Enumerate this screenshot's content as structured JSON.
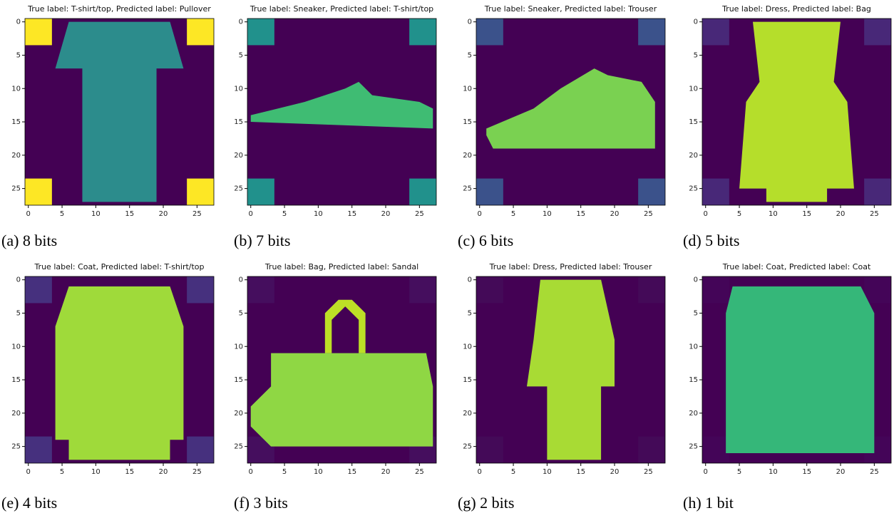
{
  "chart_data": {
    "type": "image-grid",
    "xlim": [
      -0.5,
      27.5
    ],
    "ylim": [
      27.5,
      -0.5
    ],
    "xticks": [
      0,
      5,
      10,
      15,
      20,
      25
    ],
    "yticks": [
      0,
      5,
      10,
      15,
      20,
      25
    ],
    "panels": [
      {
        "title": "True label: T-shirt/top, Predicted label: Pullover",
        "caption": "(a) 8 bits"
      },
      {
        "title": "True label: Sneaker, Predicted label: T-shirt/top",
        "caption": "(b) 7 bits"
      },
      {
        "title": "True label: Sneaker, Predicted label: Trouser",
        "caption": "(c) 6 bits"
      },
      {
        "title": "True label: Dress, Predicted label: Bag",
        "caption": "(d) 5 bits"
      },
      {
        "title": "True label: Coat, Predicted label: T-shirt/top",
        "caption": "(e) 4 bits"
      },
      {
        "title": "True label: Bag, Predicted label: Sandal",
        "caption": "(f) 3 bits"
      },
      {
        "title": "True label: Dress, Predicted label: Trouser",
        "caption": "(g) 2 bits"
      },
      {
        "title": "True label: Coat, Predicted label: Coat",
        "caption": "(h) 1 bit"
      }
    ]
  }
}
